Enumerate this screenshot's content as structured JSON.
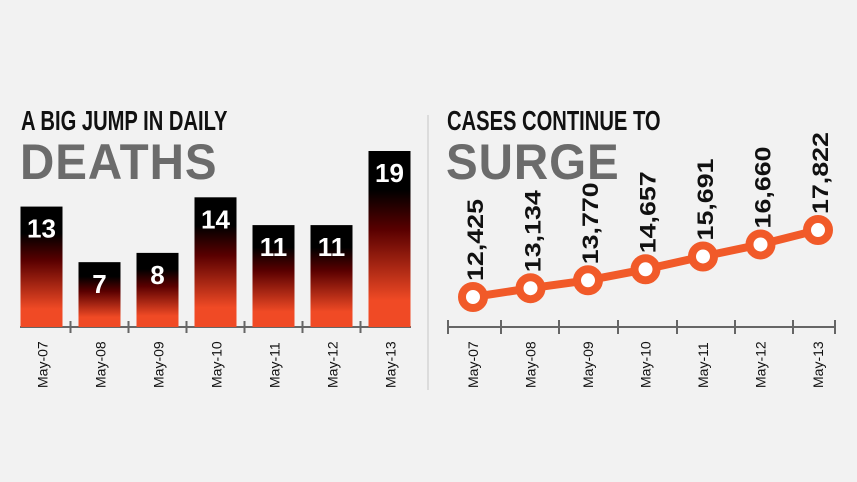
{
  "chart_data": [
    {
      "type": "bar",
      "title": "A BIG JUMP IN DAILY",
      "title_highlight": "DEATHS",
      "categories": [
        "May-07",
        "May-08",
        "May-09",
        "May-10",
        "May-11",
        "May-12",
        "May-13"
      ],
      "values": [
        13,
        7,
        8,
        14,
        11,
        11,
        19
      ],
      "data_labels": [
        "13",
        "7",
        "8",
        "14",
        "11",
        "11",
        "19"
      ],
      "xlabel": "",
      "ylabel": "",
      "ylim": [
        0,
        19
      ],
      "grid": false,
      "colors": {
        "bar_top": "#000000",
        "bar_mid": "#5a0000",
        "bar_bottom": "#f04a25",
        "axis": "#666666"
      }
    },
    {
      "type": "line",
      "title": "CASES CONTINUE TO",
      "title_highlight": "SURGE",
      "categories": [
        "May-07",
        "May-08",
        "May-09",
        "May-10",
        "May-11",
        "May-12",
        "May-13"
      ],
      "values": [
        12425,
        13134,
        13770,
        14657,
        15691,
        16660,
        17822
      ],
      "data_labels": [
        "12,425",
        "13,134",
        "13,770",
        "14,657",
        "15,691",
        "16,660",
        "17,822"
      ],
      "xlabel": "",
      "ylabel": "",
      "grid": false,
      "colors": {
        "line": "#f15a29",
        "marker_fill": "#ffffff",
        "axis": "#666666"
      }
    }
  ]
}
